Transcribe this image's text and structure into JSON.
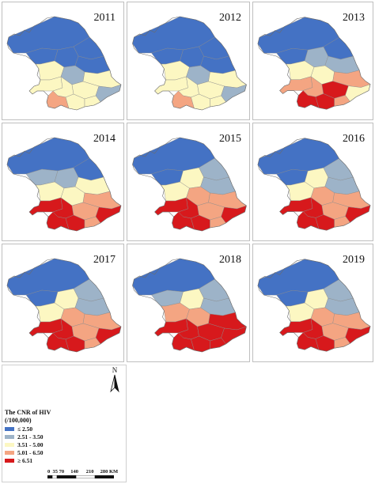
{
  "panels": [
    {
      "year": "2011",
      "level": 1
    },
    {
      "year": "2012",
      "level": 1
    },
    {
      "year": "2013",
      "level": 2
    },
    {
      "year": "2014",
      "level": 3
    },
    {
      "year": "2015",
      "level": 4
    },
    {
      "year": "2016",
      "level": 4
    },
    {
      "year": "2017",
      "level": 4
    },
    {
      "year": "2018",
      "level": 5
    },
    {
      "year": "2019",
      "level": 4
    }
  ],
  "legend": {
    "title_line1": "The CNR of HIV",
    "title_line2": "(/100,000)",
    "classes": [
      {
        "label": "≤ 2.50",
        "color": "#4472c4"
      },
      {
        "label": "2.51 - 3.50",
        "color": "#9db3c8"
      },
      {
        "label": "3.51 - 5.00",
        "color": "#fcf7c2"
      },
      {
        "label": "5.01 - 6.50",
        "color": "#f4a582"
      },
      {
        "label": "≥ 6.51",
        "color": "#d7191c"
      }
    ]
  },
  "north_arrow": {
    "label": "N"
  },
  "scale_bar": {
    "ticks": "0  35 70     140      210     280",
    "unit": "KM"
  }
}
